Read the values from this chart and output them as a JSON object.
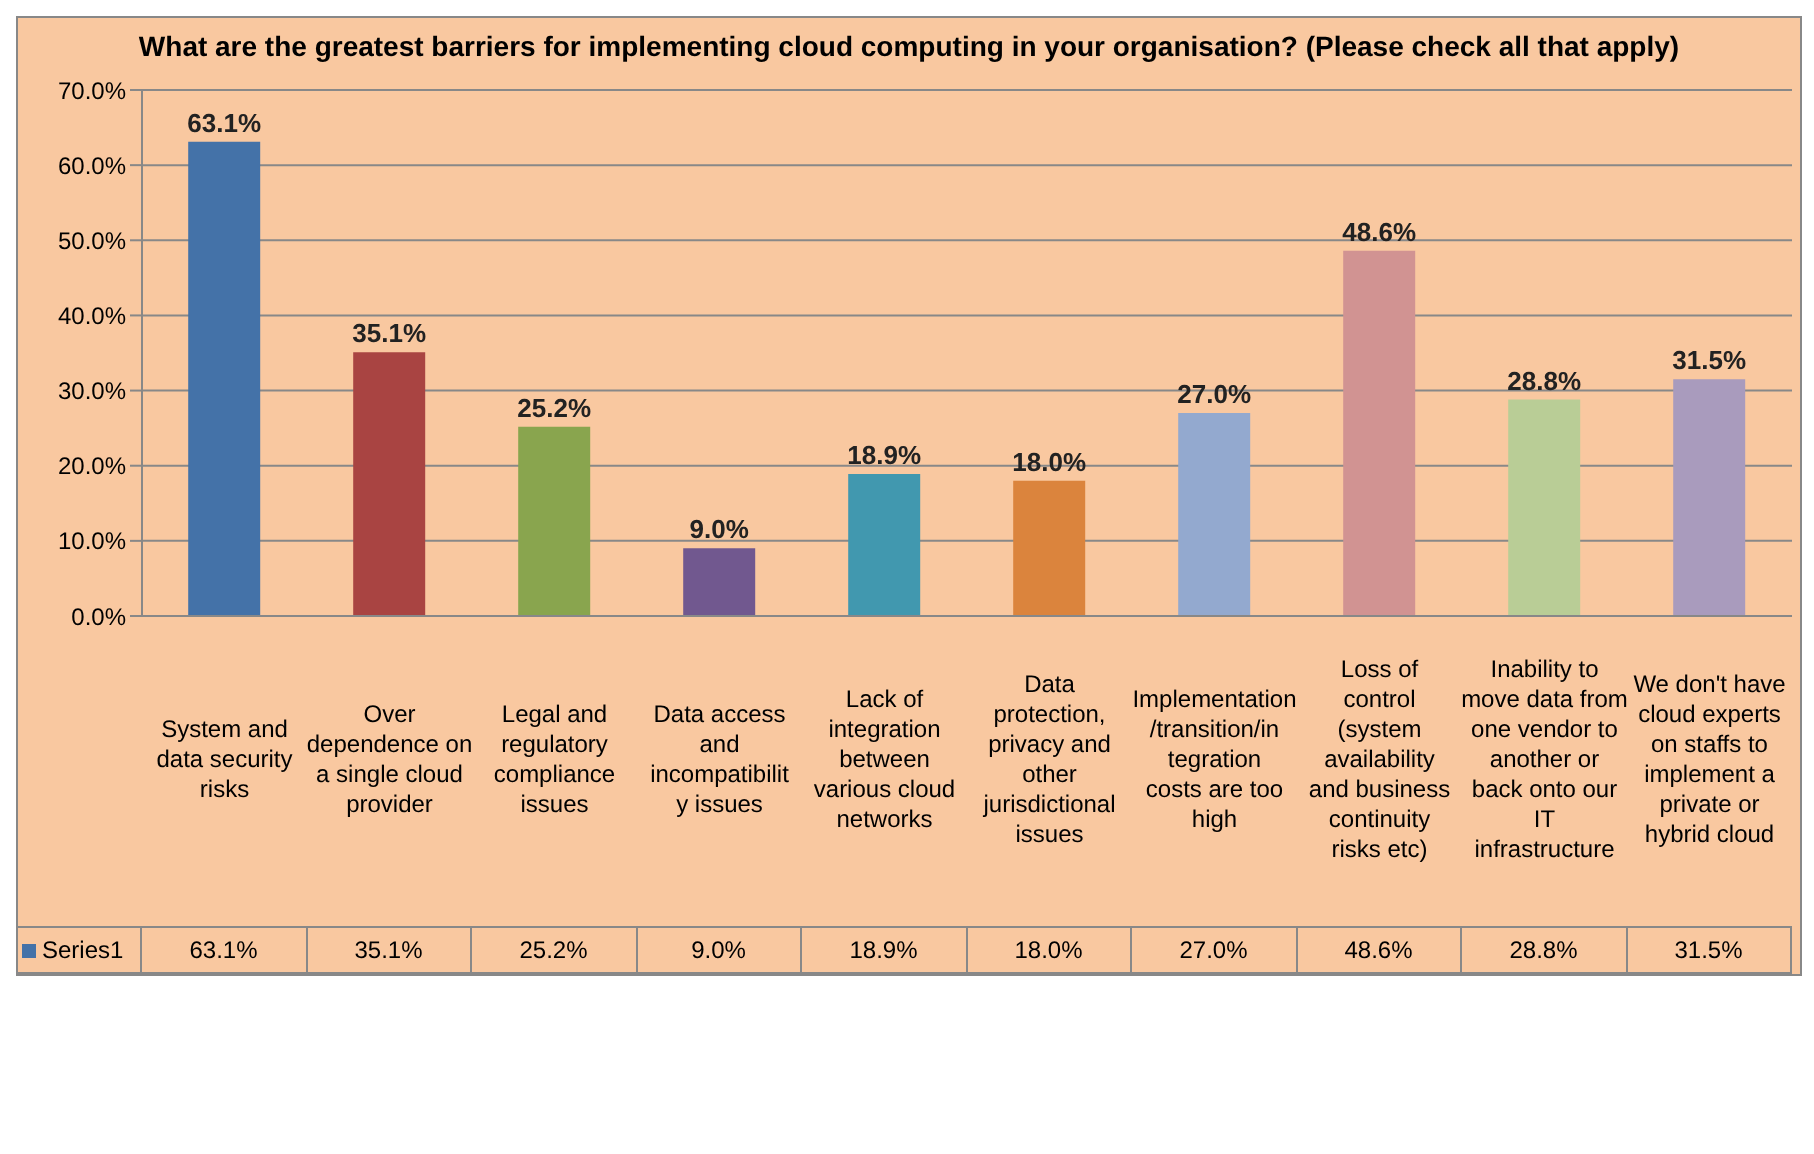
{
  "chart_data": {
    "type": "bar",
    "title": "What are the greatest barriers for implementing cloud computing in your organisation? (Please check all that apply)",
    "categories": [
      "System and data security risks",
      "Over dependence on a single cloud provider",
      "Legal and regulatory compliance issues",
      "Data access and incompatibility issues",
      "Lack of integration between various cloud networks",
      "Data protection, privacy and other jurisdictional issues",
      "Implementation/transition/integration costs are too high",
      "Loss of control (system availability and business continuity risks etc)",
      "Inability to move data from one vendor to another or back onto our IT infrastructure",
      "We don't have cloud experts on staffs to implement a private or hybrid cloud"
    ],
    "series": [
      {
        "name": "Series1",
        "color": "#4472a8",
        "colors": [
          "#4472a8",
          "#a94442",
          "#89a54e",
          "#71588f",
          "#4198af",
          "#db843d",
          "#93a9cf",
          "#d19392",
          "#b9cd96",
          "#a99bbd"
        ],
        "values": [
          63.1,
          35.1,
          25.2,
          9.0,
          18.9,
          18.0,
          27.0,
          48.6,
          28.8,
          31.5
        ],
        "value_labels": [
          "63.1%",
          "35.1%",
          "25.2%",
          "9.0%",
          "18.9%",
          "18.0%",
          "27.0%",
          "48.6%",
          "28.8%",
          "31.5%"
        ]
      }
    ],
    "ylim": [
      0,
      70
    ],
    "yticks": [
      {
        "value": 0,
        "label": "0.0%"
      },
      {
        "value": 10,
        "label": "10.0%"
      },
      {
        "value": 20,
        "label": "20.0%"
      },
      {
        "value": 30,
        "label": "30.0%"
      },
      {
        "value": 40,
        "label": "40.0%"
      },
      {
        "value": 50,
        "label": "50.0%"
      },
      {
        "value": 60,
        "label": "60.0%"
      },
      {
        "value": 70,
        "label": "70.0%"
      }
    ],
    "grid": "y",
    "legend": "bottom"
  }
}
